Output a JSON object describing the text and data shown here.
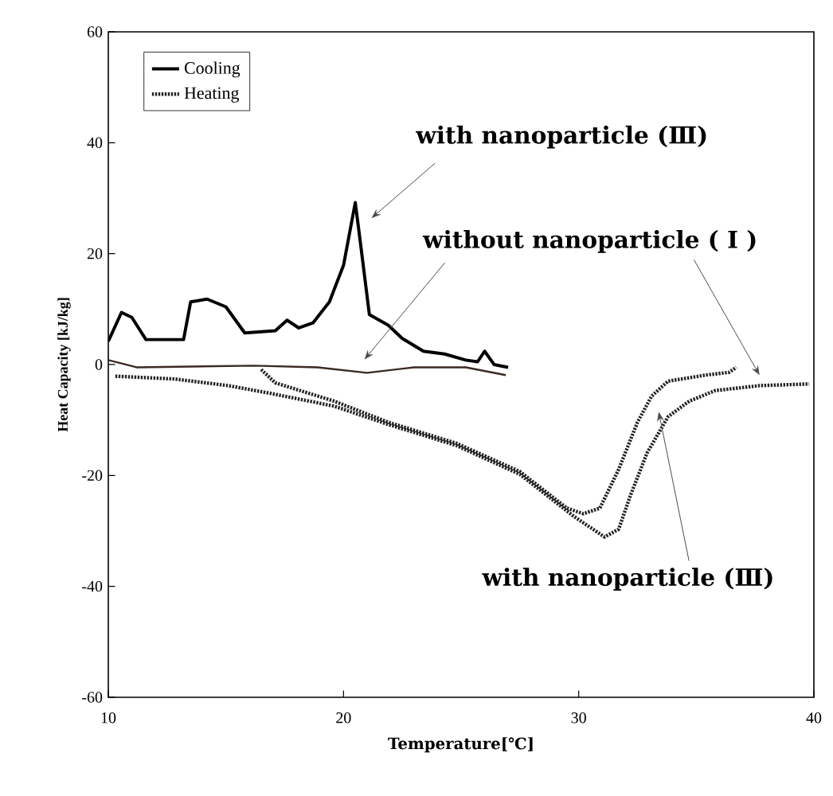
{
  "chart_data": {
    "type": "line",
    "xlabel": "Temperature[℃]",
    "ylabel": "Heat Capacity [kJ/kg]",
    "xlim": [
      10,
      40
    ],
    "ylim": [
      -60,
      60
    ],
    "xticks": [
      10,
      20,
      30,
      40
    ],
    "yticks": [
      -60,
      -40,
      -20,
      0,
      20,
      40,
      60
    ],
    "grid": false,
    "legend": "top left",
    "marker": "none",
    "series": [
      {
        "name": "Cooling",
        "color": "#000000",
        "line_style": "solid",
        "x": [
          10,
          10.56,
          11.0,
          11.6,
          13.2,
          13.5,
          14.2,
          15.0,
          15.8,
          17.1,
          17.6,
          18.1,
          18.7,
          19.4,
          20.0,
          20.5,
          20.7,
          21.1,
          21.9,
          22.5,
          23.4,
          24.3,
          25.2,
          25.7,
          26.0,
          26.4,
          27.0
        ],
        "values": [
          4.2,
          9.4,
          8.5,
          4.5,
          4.5,
          11.3,
          11.8,
          10.4,
          5.7,
          6.1,
          8.0,
          6.6,
          7.5,
          11.3,
          17.9,
          29.2,
          22.6,
          9.0,
          7.1,
          4.7,
          2.4,
          1.9,
          0.8,
          0.5,
          2.4,
          0,
          -0.5
        ]
      },
      {
        "color": "#3b2a22",
        "line_style": "solid",
        "x": [
          10,
          11.2,
          16.2,
          18.9,
          21.0,
          23.0,
          25.2,
          26.9
        ],
        "values": [
          0.8,
          -0.5,
          -0.2,
          -0.5,
          -1.5,
          -0.5,
          -0.5,
          -1.9
        ]
      },
      {
        "name": "Heating",
        "color": "#222222",
        "line_style": "dotted",
        "x": [
          10.3,
          12.8,
          15.1,
          16.9,
          19.6,
          21.9,
          24.8,
          27.5,
          29.8,
          31.1,
          31.7,
          32.2,
          32.9,
          33.8,
          34.7,
          35.8,
          37.7,
          39.8
        ],
        "values": [
          -2.1,
          -2.6,
          -3.8,
          -5.2,
          -7.5,
          -10.8,
          -14.6,
          -19.8,
          -27.4,
          -31.1,
          -29.7,
          -23.6,
          -16.0,
          -9.4,
          -6.6,
          -4.7,
          -3.8,
          -3.5
        ]
      },
      {
        "color": "#222222",
        "line_style": "dotted",
        "x": [
          16.5,
          17.1,
          19.6,
          21.9,
          24.8,
          27.5,
          29.5,
          30.2,
          30.9,
          31.7,
          32.5,
          33.1,
          33.8,
          35.4,
          36.4,
          36.7
        ],
        "values": [
          -0.9,
          -3.3,
          -6.6,
          -10.4,
          -14.2,
          -19.3,
          -25.9,
          -26.9,
          -25.9,
          -18.9,
          -10.4,
          -5.7,
          -3.0,
          -1.9,
          -1.4,
          -0.5
        ]
      }
    ],
    "annotations": [
      "with nanoparticle (Ⅲ)",
      "without nanoparticle ( Ⅰ )",
      "with nanoparticle (Ⅲ)"
    ]
  }
}
